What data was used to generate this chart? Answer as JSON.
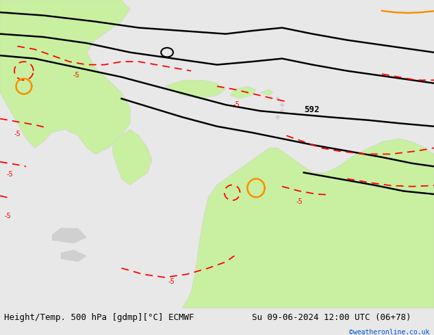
{
  "title_left": "Height/Temp. 500 hPa [gdmp][°C] ECMWF",
  "title_right": "Su 09-06-2024 12:00 UTC (06+78)",
  "credit": "©weatheronline.co.uk",
  "background_color": "#e8e8e8",
  "land_green_color": "#c8f0a0",
  "land_gray_color": "#d0d0d0",
  "contour_color": "#000000",
  "temp_contour_color": "#ff0000",
  "warm_contour_color": "#ff8c00",
  "label_592": "592",
  "font_size_title": 9,
  "font_size_label": 8,
  "fig_width": 6.34,
  "fig_height": 4.9,
  "dpi": 100
}
